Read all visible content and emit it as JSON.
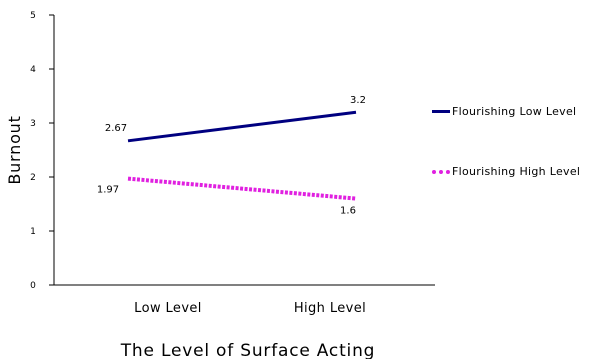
{
  "chart_data": {
    "type": "line",
    "title": "",
    "xlabel": "The Level of Surface Acting",
    "ylabel": "Burnout",
    "categories": [
      "Low Level",
      "High Level"
    ],
    "ylim": [
      0,
      5
    ],
    "yticks": [
      "0",
      "1",
      "2",
      "3",
      "4",
      "5"
    ],
    "grid": false,
    "legend_placement": "right",
    "series": [
      {
        "name": "Flourishing Low Level",
        "values": [
          2.67,
          3.2
        ],
        "labels": [
          "2.67",
          "3.2"
        ],
        "color": "#000080",
        "style": "solid"
      },
      {
        "name": "Flourishing High Level",
        "values": [
          1.97,
          1.6
        ],
        "labels": [
          "1.97",
          "1.6"
        ],
        "color": "#e020e0",
        "style": "dotted"
      }
    ]
  }
}
